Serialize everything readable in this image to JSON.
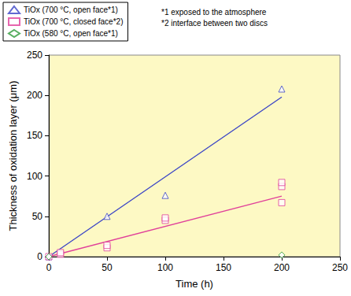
{
  "chart_data": {
    "type": "scatter",
    "x_label": "Time (h)",
    "y_label": "Thickness of oxidation layer (μm)",
    "annotations": [
      "*1 exposed to the atmosphere",
      "*2 interface between two discs"
    ],
    "xlim": [
      0,
      250
    ],
    "xticks": [
      0,
      50,
      100,
      150,
      200,
      250
    ],
    "ylim": [
      0,
      250
    ],
    "yticks": [
      0,
      50,
      100,
      150,
      200,
      250
    ],
    "grid": false,
    "legend": "top-left",
    "series": [
      {
        "name": "TiOx (700 °C, open face*1)",
        "color": "#3a44c6",
        "marker": "triangle",
        "x": [
          0,
          50,
          100,
          200
        ],
        "values": [
          0,
          50,
          76,
          208
        ],
        "trend": {
          "x": [
            0,
            200
          ],
          "values": [
            0,
            198
          ]
        }
      },
      {
        "name": "TiOx (700 °C, closed face*2)",
        "color": "#e0409a",
        "marker": "square",
        "x": [
          0,
          10,
          10,
          50,
          50,
          100,
          100,
          200,
          200,
          200
        ],
        "values": [
          0,
          3,
          5,
          11,
          14,
          45,
          48,
          67,
          87,
          92
        ],
        "trend": {
          "x": [
            0,
            200
          ],
          "values": [
            0,
            75
          ]
        }
      },
      {
        "name": "TiOx (580 °C, open face*1)",
        "color": "#2e9a3a",
        "marker": "diamond",
        "x": [
          0,
          200
        ],
        "values": [
          0,
          2
        ]
      }
    ]
  }
}
